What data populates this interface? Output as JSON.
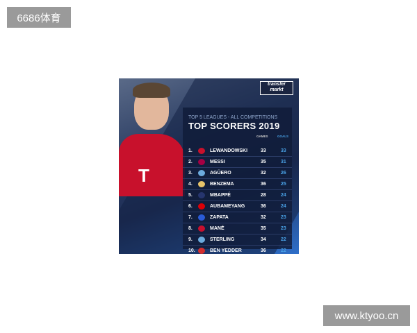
{
  "watermarks": {
    "top_left": "6686体育",
    "bottom_right": "www.ktyoo.cn"
  },
  "graphic": {
    "logo": "transfer markt",
    "subtitle": "TOP 5 LEAGUES - ALL COMPETITIONS",
    "title": "TOP SCORERS 2019",
    "columns": {
      "games": "GAMES",
      "goals": "GOALS"
    },
    "rows": [
      {
        "rank": "1.",
        "name": "LEWANDOWSKI",
        "games": "33",
        "goals": "33",
        "crest": "#c8112c"
      },
      {
        "rank": "2.",
        "name": "MESSI",
        "games": "35",
        "goals": "31",
        "crest": "#a50044"
      },
      {
        "rank": "3.",
        "name": "AGÜERO",
        "games": "32",
        "goals": "26",
        "crest": "#6cabdd"
      },
      {
        "rank": "4.",
        "name": "BENZEMA",
        "games": "36",
        "goals": "25",
        "crest": "#e8c46a"
      },
      {
        "rank": "5.",
        "name": "MBAPPÉ",
        "games": "28",
        "goals": "24",
        "crest": "#26356e"
      },
      {
        "rank": "6.",
        "name": "AUBAMEYANG",
        "games": "36",
        "goals": "24",
        "crest": "#db0007"
      },
      {
        "rank": "7.",
        "name": "ZAPATA",
        "games": "32",
        "goals": "23",
        "crest": "#2a5bd7"
      },
      {
        "rank": "8.",
        "name": "MANÉ",
        "games": "35",
        "goals": "23",
        "crest": "#c8102e"
      },
      {
        "rank": "9.",
        "name": "STERLING",
        "games": "34",
        "goals": "22",
        "crest": "#6cabdd"
      },
      {
        "rank": "10.",
        "name": "BEN YEDDER",
        "games": "36",
        "goals": "22",
        "crest": "#d32f2f"
      }
    ]
  }
}
